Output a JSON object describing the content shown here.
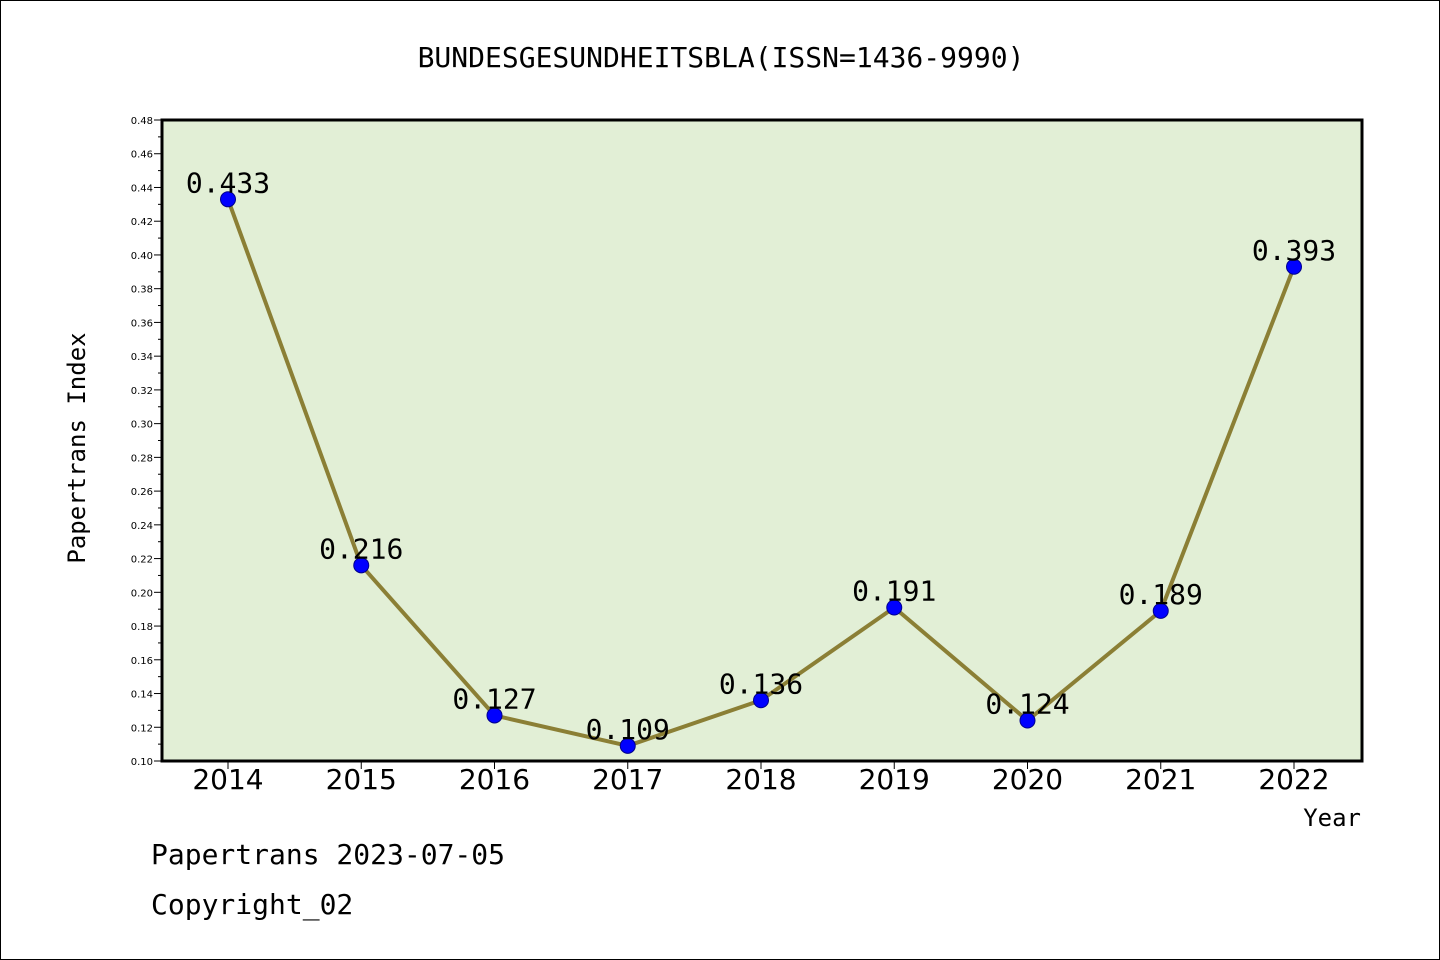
{
  "chart_data": {
    "type": "line",
    "title": "BUNDESGESUNDHEITSBLA(ISSN=1436-9990)",
    "xlabel": "Year",
    "ylabel": "Papertrans Index",
    "categories": [
      "2014",
      "2015",
      "2016",
      "2017",
      "2018",
      "2019",
      "2020",
      "2021",
      "2022"
    ],
    "series": [
      {
        "values": [
          0.433,
          0.216,
          0.127,
          0.109,
          0.136,
          0.191,
          0.124,
          0.189,
          0.393
        ],
        "data_labels": [
          "0.433",
          "0.216",
          "0.127",
          "0.109",
          "0.136",
          "0.191",
          "0.124",
          "0.189",
          "0.393"
        ]
      }
    ],
    "ylim": [
      0.1,
      0.48
    ],
    "yticks": [
      "0.10",
      "0.12",
      "0.14",
      "0.16",
      "0.18",
      "0.20",
      "0.22",
      "0.24",
      "0.26",
      "0.28",
      "0.30",
      "0.32",
      "0.34",
      "0.36",
      "0.38",
      "0.40",
      "0.42",
      "0.44",
      "0.46",
      "0.48"
    ],
    "grid": false,
    "legend": "none",
    "colors": {
      "plot_background": "#e2efd6",
      "line": "#8b7f35",
      "marker": "#0000ff",
      "marker_edge": "#00008b"
    }
  },
  "footer": {
    "line1": "Papertrans 2023-07-05",
    "line2": "Copyright_02"
  }
}
